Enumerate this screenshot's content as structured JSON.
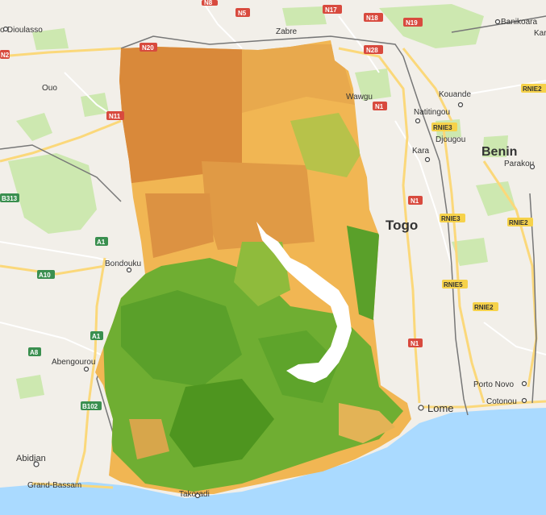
{
  "map": {
    "countries": [
      "Togo",
      "Benin"
    ],
    "cities": [
      "o-Dioulasso",
      "Ouo",
      "Zabre",
      "Wawgu",
      "Kouande",
      "Natitingou",
      "Djougou",
      "Kara",
      "Parakou",
      "Banikoara",
      "Kar",
      "Bondouku",
      "Abengourou",
      "Abidjan",
      "Grand-Bassam",
      "Lome",
      "Porto Novo",
      "Cotonou",
      "Takoradi"
    ],
    "roads": [
      "N20",
      "N5",
      "N17",
      "N18",
      "N19",
      "N28",
      "N1",
      "N11",
      "N2",
      "RNIE3",
      "RNIE2",
      "RNIE5",
      "B313",
      "A1",
      "A10",
      "A8",
      "B102",
      "N8"
    ],
    "colors": {
      "land": "#f2efe9",
      "water": "#aadaff",
      "park": "#cde8b0",
      "overlay_dry": "#d9893a",
      "overlay_mid": "#f1b653",
      "overlay_green": "#5aa02a",
      "border": "#7f7f7f"
    }
  }
}
